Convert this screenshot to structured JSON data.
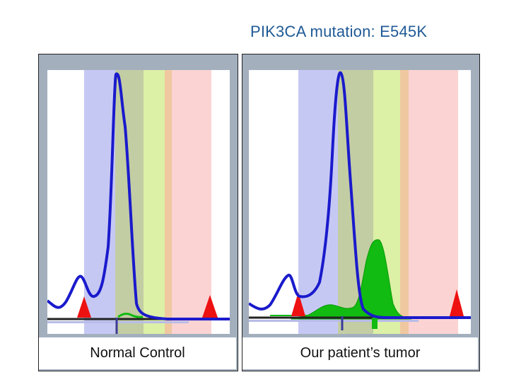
{
  "slide": {
    "title": "PIK3CA mutation: E545K"
  },
  "panels": [
    {
      "label": "Normal Control",
      "colors": {
        "blue_band": "#c6c8f4",
        "olive_band": "#c3cda3",
        "green_band": "#dcf0a6",
        "orange_band": "#f0c8a0",
        "pink_band": "#fbd3d3",
        "blue_trace": "#1a1acc",
        "green_trace": "#11bb11",
        "marker": "#ee1111"
      }
    },
    {
      "label": "Our patient’s tumor",
      "colors": {
        "blue_band": "#c6c8f4",
        "olive_band": "#c3cda3",
        "green_band": "#dcf0a6",
        "orange_band": "#f0c8a0",
        "pink_band": "#fbd3d3",
        "blue_trace": "#1a1acc",
        "green_trace": "#11bb11",
        "marker": "#ee1111"
      }
    }
  ]
}
